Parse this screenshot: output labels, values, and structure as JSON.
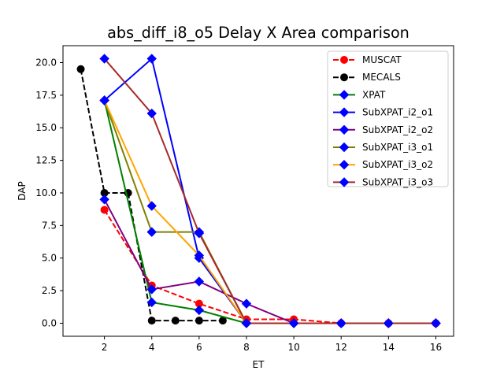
{
  "chart_data": {
    "type": "line",
    "title": "abs_diff_i8_o5 Delay X Area comparison",
    "xlabel": "ET",
    "ylabel": "DAP",
    "xlim": [
      0.25,
      16.75
    ],
    "ylim": [
      -1.0,
      21.3
    ],
    "xticks": [
      2,
      4,
      6,
      8,
      10,
      12,
      14,
      16
    ],
    "yticks": [
      0.0,
      2.5,
      5.0,
      7.5,
      10.0,
      12.5,
      15.0,
      17.5,
      20.0
    ],
    "xtick_labels": [
      "2",
      "4",
      "6",
      "8",
      "10",
      "12",
      "14",
      "16"
    ],
    "ytick_labels": [
      "0.0",
      "2.5",
      "5.0",
      "7.5",
      "10.0",
      "12.5",
      "15.0",
      "17.5",
      "20.0"
    ],
    "grid": false,
    "legend_position": "top-right",
    "series": [
      {
        "name": "MUSCAT",
        "color": "#ff0000",
        "linestyle": "dashed",
        "marker": "circle",
        "x": [
          2,
          4,
          6,
          8,
          10,
          12,
          14,
          16
        ],
        "y": [
          8.7,
          2.9,
          1.5,
          0.3,
          0.3,
          0.0,
          0.0,
          0.0
        ]
      },
      {
        "name": "MECALS",
        "color": "#000000",
        "linestyle": "dashed",
        "marker": "circle",
        "x": [
          1,
          2,
          3,
          4,
          5,
          6,
          7
        ],
        "y": [
          19.5,
          10.0,
          10.0,
          0.2,
          0.2,
          0.2,
          0.2
        ]
      },
      {
        "name": "XPAT",
        "color": "#008000",
        "linestyle": "solid",
        "marker": "diamond",
        "x": [
          2,
          4,
          6,
          8,
          10,
          12,
          14,
          16
        ],
        "y": [
          17.1,
          1.6,
          1.0,
          0.0,
          0.0,
          0.0,
          0.0,
          0.0
        ]
      },
      {
        "name": "SubXPAT_i2_o1",
        "color": "#0000ff",
        "linestyle": "solid",
        "marker": "diamond",
        "x": [
          2,
          4,
          6,
          8,
          10,
          12,
          14,
          16
        ],
        "y": [
          17.1,
          20.3,
          5.0,
          0.0,
          0.0,
          0.0,
          0.0,
          0.0
        ]
      },
      {
        "name": "SubXPAT_i2_o2",
        "color": "#800080",
        "linestyle": "solid",
        "marker": "diamond",
        "x": [
          2,
          4,
          6,
          8,
          10,
          12,
          14,
          16
        ],
        "y": [
          9.5,
          2.6,
          3.2,
          1.5,
          0.0,
          0.0,
          0.0,
          0.0
        ]
      },
      {
        "name": "SubXPAT_i3_o1",
        "color": "#808000",
        "linestyle": "solid",
        "marker": "diamond",
        "x": [
          2,
          4,
          6,
          8,
          10,
          12,
          14,
          16
        ],
        "y": [
          17.1,
          7.0,
          7.0,
          0.0,
          0.0,
          0.0,
          0.0,
          0.0
        ]
      },
      {
        "name": "SubXPAT_i3_o2",
        "color": "#ffa500",
        "linestyle": "solid",
        "marker": "diamond",
        "x": [
          2,
          4,
          6,
          8,
          10,
          12,
          14,
          16
        ],
        "y": [
          17.1,
          9.0,
          5.2,
          0.0,
          0.0,
          0.0,
          0.0,
          0.0
        ]
      },
      {
        "name": "SubXPAT_i3_o3",
        "color": "#a52a2a",
        "linestyle": "solid",
        "marker": "diamond",
        "x": [
          2,
          4,
          6,
          8,
          10,
          12,
          14,
          16
        ],
        "y": [
          20.3,
          16.1,
          6.9,
          0.0,
          0.0,
          0.0,
          0.0,
          0.0
        ]
      }
    ]
  }
}
